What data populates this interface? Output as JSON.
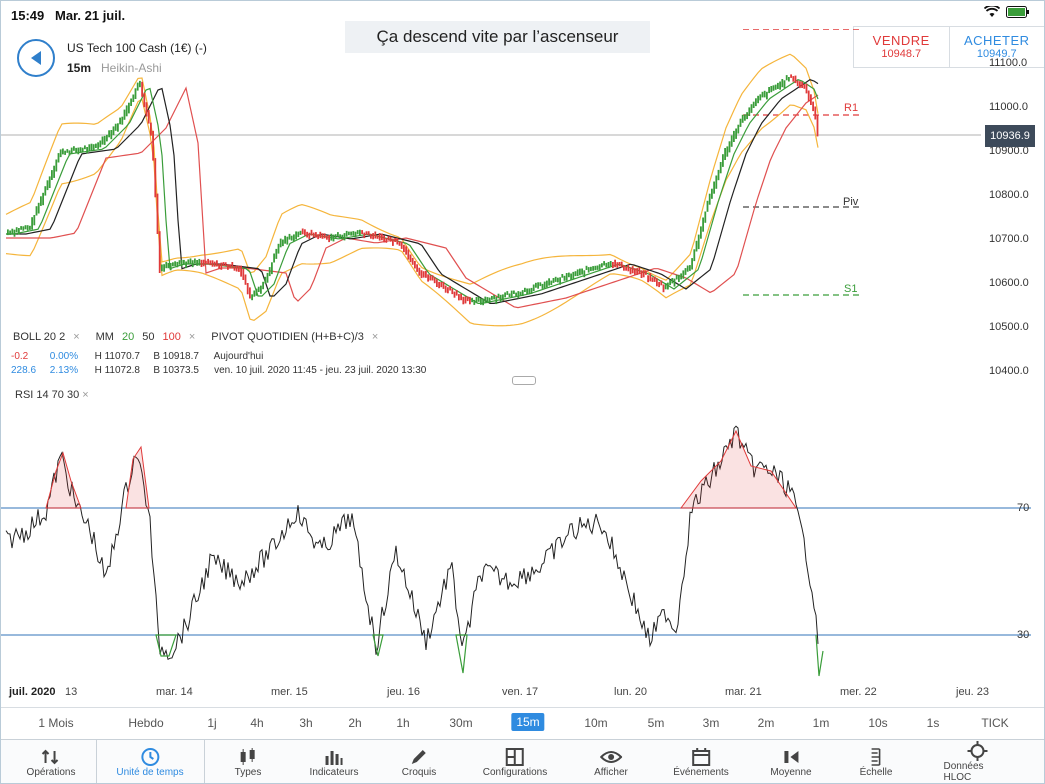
{
  "status": {
    "time": "15:49",
    "date": "Mar. 21 juil."
  },
  "banner": "Ça descend vite par l’ascenseur",
  "instrument": {
    "name": "US Tech 100 Cash (1€) (-)",
    "timeframe": "15m",
    "chart_type": "Heikin-Ashi"
  },
  "trade": {
    "sell_label": "VENDRE",
    "sell_price": "10948.7",
    "buy_label": "ACHETER",
    "buy_price": "10949.7"
  },
  "price_axis": [
    "11100.0",
    "11000.0",
    "10900.0",
    "10800.0",
    "10700.0",
    "10600.0",
    "10500.0",
    "10400.0"
  ],
  "current_price": "10936.9",
  "pivots": {
    "r1": "R1",
    "piv": "Piv",
    "s1": "S1"
  },
  "indicators": {
    "boll": "BOLL  20  2",
    "mm": "MM",
    "mm20": "20",
    "mm50": "50",
    "mm100": "100",
    "pivot": "PIVOT  QUOTIDIEN  (H+B+C)/3"
  },
  "rows": [
    {
      "change": "-0.2",
      "pct": "0.00%",
      "high": "H 11070.7",
      "low": "B 10918.7",
      "period": "Aujourd'hui"
    },
    {
      "change": "228.6",
      "pct": "2.13%",
      "high": "H 11072.8",
      "low": "B 10373.5",
      "period": "ven. 10 juil. 2020 11:45 - jeu. 23 juil. 2020 13:30"
    }
  ],
  "rsi": {
    "legend": "RSI  14  70  30",
    "upper": "70",
    "lower": "30"
  },
  "dates": [
    "juil. 2020",
    "13",
    "mar. 14",
    "mer. 15",
    "jeu. 16",
    "ven. 17",
    "lun. 20",
    "mar. 21",
    "mer. 22",
    "jeu. 23"
  ],
  "timeframes": [
    "1 Mois",
    "Hebdo",
    "1j",
    "4h",
    "3h",
    "2h",
    "1h",
    "30m",
    "15m",
    "10m",
    "5m",
    "3m",
    "2m",
    "1m",
    "10s",
    "1s",
    "TICK"
  ],
  "active_timeframe": "15m",
  "toolbar": [
    "Opérations",
    "Unité de temps",
    "Types",
    "Indicateurs",
    "Croquis",
    "Configurations",
    "Afficher",
    "Événements",
    "Moyenne",
    "Échelle",
    "Données HLOC"
  ],
  "colors": {
    "up": "#3a9d3a",
    "down": "#e03a3a",
    "accent": "#2f8be0",
    "boll": "#f5b53c",
    "ma100": "#e05050"
  }
}
